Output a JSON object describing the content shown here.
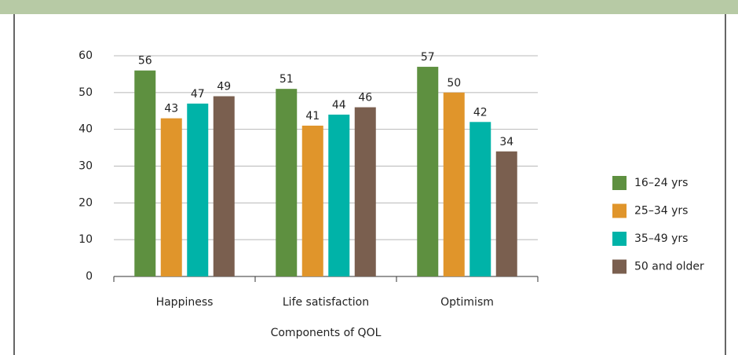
{
  "chart_data": {
    "type": "bar",
    "x_label": "Components of QOL",
    "categories": [
      "Happiness",
      "Life satisfaction",
      "Optimism"
    ],
    "series": [
      {
        "name": "16–24 yrs",
        "color": "#5e9040",
        "values": [
          56,
          51,
          57
        ]
      },
      {
        "name": "25–34 yrs",
        "color": "#e0952b",
        "values": [
          43,
          41,
          50
        ]
      },
      {
        "name": "35–49 yrs",
        "color": "#00b3a8",
        "values": [
          47,
          44,
          42
        ]
      },
      {
        "name": "50 and older",
        "color": "#7a5f4f",
        "values": [
          49,
          46,
          34
        ]
      }
    ],
    "ylim": [
      0,
      60
    ],
    "yticks": [
      0,
      10,
      20,
      30,
      40,
      50,
      60
    ],
    "grid": true,
    "legend": "right"
  }
}
